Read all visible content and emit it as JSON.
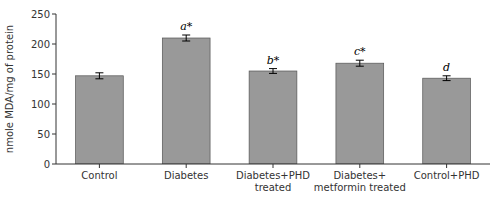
{
  "chart_data": {
    "type": "bar",
    "categories": [
      "Control",
      "Diabetes",
      "Diabetes+PHD\ntreated",
      "Diabetes+\nmetformin treated",
      "Control+PHD"
    ],
    "values": [
      147,
      210,
      155,
      168,
      143
    ],
    "errors": [
      5,
      5,
      4,
      5,
      4
    ],
    "annotations": [
      null,
      "a*",
      "b*",
      "c*",
      "d"
    ],
    "ylabel": "nmole MDA/mg of protein",
    "ylim": [
      0,
      250
    ],
    "yticks": [
      0,
      50,
      100,
      150,
      200,
      250
    ],
    "color": "#999999",
    "grid": false
  }
}
